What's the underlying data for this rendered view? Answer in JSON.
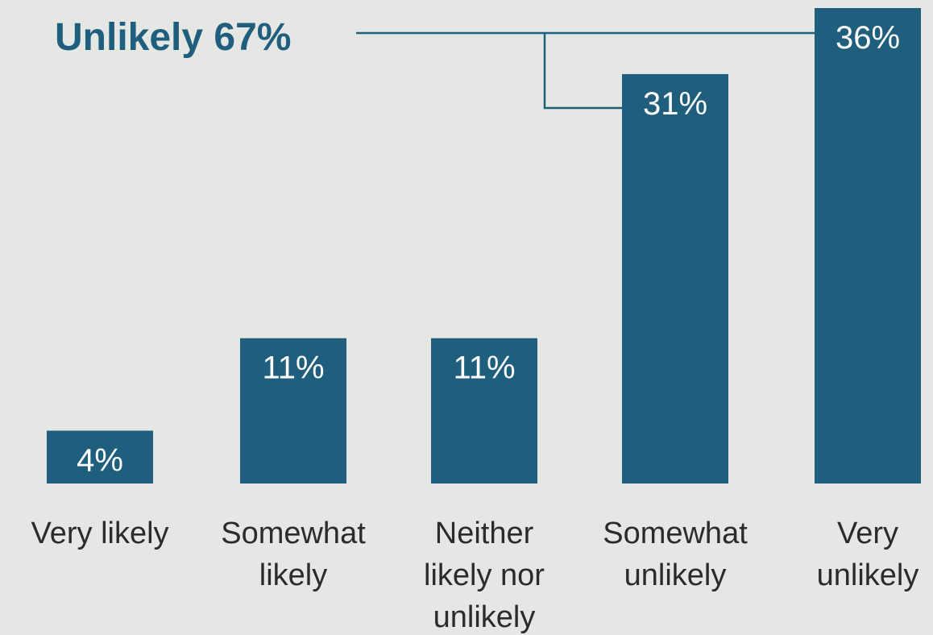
{
  "chart_data": {
    "type": "bar",
    "categories": [
      "Very likely",
      "Somewhat likely",
      "Neither likely nor unlikely",
      "Somewhat unlikely",
      "Very unlikely"
    ],
    "category_lines": [
      [
        "Very likely"
      ],
      [
        "Somewhat",
        "likely"
      ],
      [
        "Neither",
        "likely nor",
        "unlikely"
      ],
      [
        "Somewhat",
        "unlikely"
      ],
      [
        "Very",
        "unlikely"
      ]
    ],
    "values": [
      4,
      11,
      11,
      31,
      36
    ],
    "value_labels": [
      "4%",
      "11%",
      "11%",
      "31%",
      "36%"
    ],
    "ylim": [
      0,
      36
    ],
    "title": "",
    "xlabel": "",
    "ylabel": "",
    "grid": false,
    "bar_color": "#1f5f7d",
    "annotation": {
      "text": "Unlikely 67%",
      "brackets": [
        "Somewhat unlikely",
        "Very unlikely"
      ]
    }
  }
}
